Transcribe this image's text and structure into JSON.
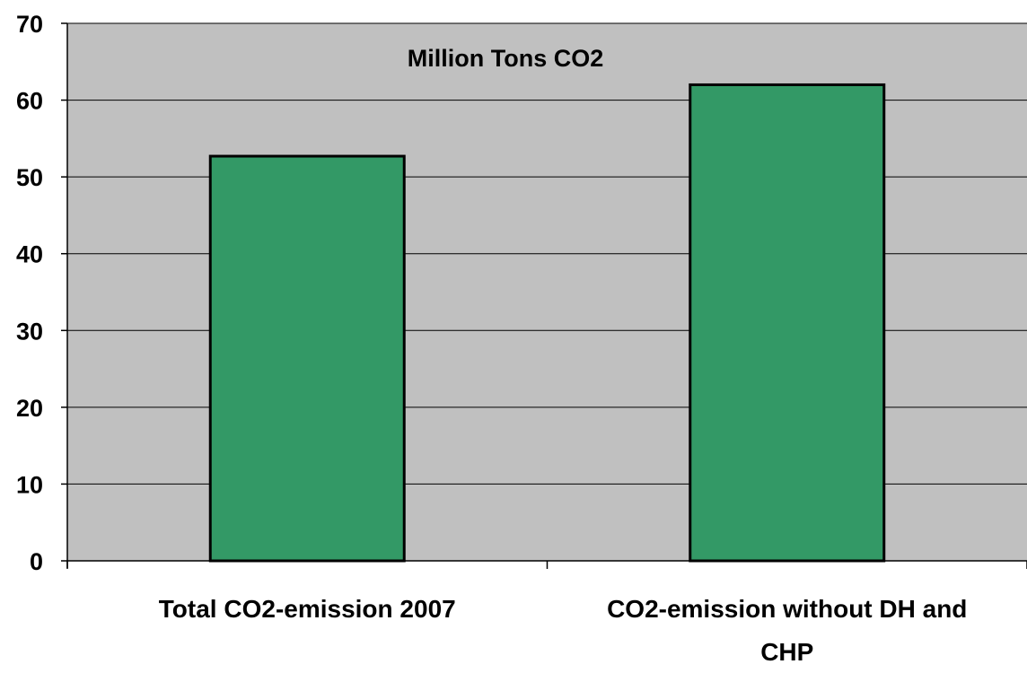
{
  "chart_data": {
    "type": "bar",
    "title": "Million Tons CO2",
    "xlabel": "",
    "ylabel": "",
    "categories": [
      [
        "Total CO2-emission 2007"
      ],
      [
        "CO2-emission without DH and",
        "CHP"
      ]
    ],
    "values": [
      52.7,
      62.0
    ],
    "ylim": [
      0,
      70
    ],
    "yticks": [
      "0",
      "10",
      "20",
      "30",
      "40",
      "50",
      "60",
      "70"
    ],
    "grid": true,
    "legend": "none",
    "colors": {
      "plot_background": "#c0c0c0",
      "bar_fill": "#339966",
      "bar_stroke": "#000000",
      "gridline": "#000000"
    }
  }
}
